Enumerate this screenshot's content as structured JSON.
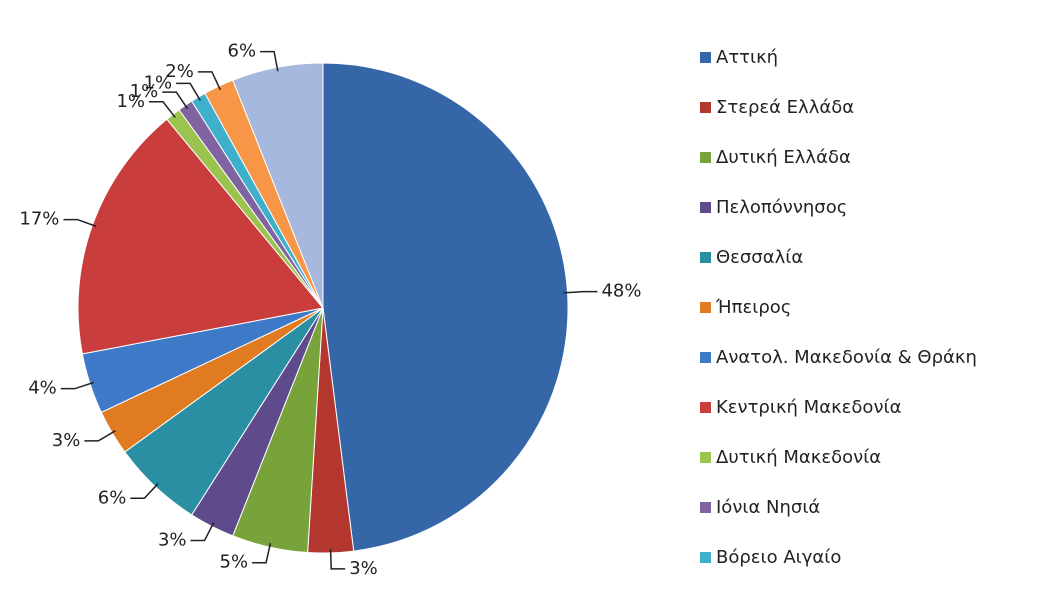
{
  "chart_data": {
    "type": "pie",
    "categories": [
      "Αττική",
      "Στερεά Ελλάδα",
      "Δυτική Ελλάδα",
      "Πελοπόννησος",
      "Θεσσαλία",
      "Ήπειρος",
      "Ανατολ. Μακεδονία & Θράκη",
      "Κεντρική Μακεδονία",
      "Δυτική Μακεδονία",
      "Ιόνια Νησιά",
      "Βόρειο Αιγαίο",
      null,
      null
    ],
    "values": [
      48,
      3,
      5,
      3,
      6,
      3,
      4,
      17,
      1,
      1,
      1,
      2,
      6
    ],
    "value_labels": [
      "48%",
      "3%",
      "5%",
      "3%",
      "6%",
      "3%",
      "4%",
      "17%",
      "1%",
      "1%",
      "1%",
      "2%",
      "6%"
    ],
    "colors": [
      "#3566a8",
      "#b3362f",
      "#77a33a",
      "#5f4a8b",
      "#2b8fa3",
      "#e07b22",
      "#3f7ac8",
      "#c93e3c",
      "#9bc44e",
      "#8064a2",
      "#3fb0cc",
      "#f79646",
      "#a6b8dd"
    ],
    "legend": "right"
  }
}
